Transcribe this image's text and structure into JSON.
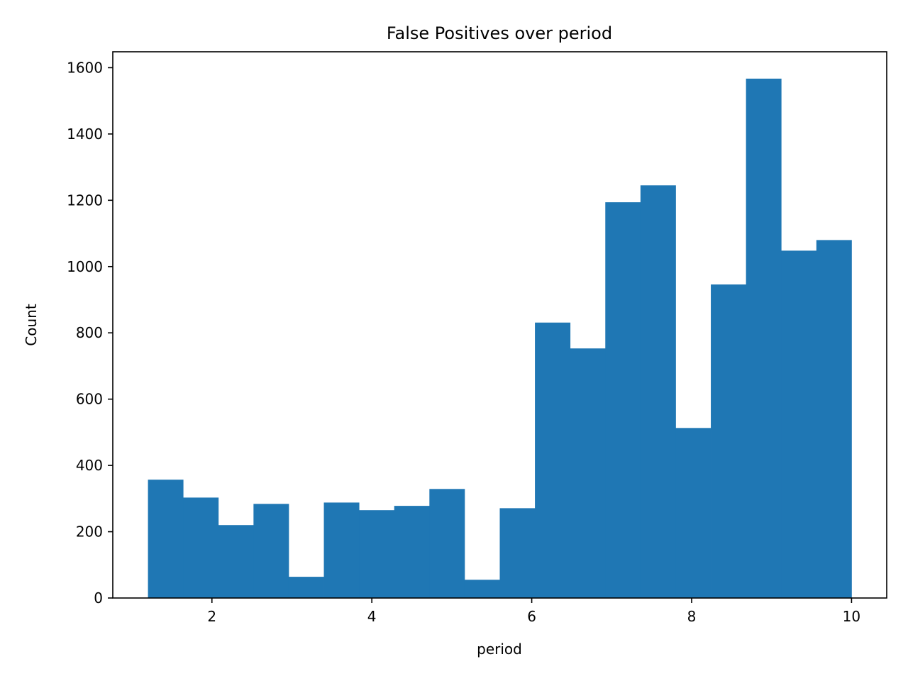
{
  "chart_data": {
    "type": "bar",
    "subtype": "histogram",
    "title": "False Positives over period",
    "xlabel": "period",
    "ylabel": "Count",
    "xlim": [
      0.76,
      10.44
    ],
    "ylim": [
      0,
      1648
    ],
    "xticks": [
      2,
      4,
      6,
      8,
      10
    ],
    "yticks": [
      0,
      200,
      400,
      600,
      800,
      1000,
      1200,
      1400,
      1600
    ],
    "grid": false,
    "color": "#1f77b4",
    "bins": [
      {
        "x0": 1.2,
        "x1": 1.64,
        "value": 357
      },
      {
        "x0": 1.64,
        "x1": 2.08,
        "value": 303
      },
      {
        "x0": 2.08,
        "x1": 2.52,
        "value": 220
      },
      {
        "x0": 2.52,
        "x1": 2.96,
        "value": 284
      },
      {
        "x0": 2.96,
        "x1": 3.4,
        "value": 64
      },
      {
        "x0": 3.4,
        "x1": 3.84,
        "value": 288
      },
      {
        "x0": 3.84,
        "x1": 4.28,
        "value": 265
      },
      {
        "x0": 4.28,
        "x1": 4.72,
        "value": 278
      },
      {
        "x0": 4.72,
        "x1": 5.16,
        "value": 329
      },
      {
        "x0": 5.16,
        "x1": 5.6,
        "value": 55
      },
      {
        "x0": 5.6,
        "x1": 6.04,
        "value": 271
      },
      {
        "x0": 6.04,
        "x1": 6.48,
        "value": 831
      },
      {
        "x0": 6.48,
        "x1": 6.92,
        "value": 753
      },
      {
        "x0": 6.92,
        "x1": 7.36,
        "value": 1194
      },
      {
        "x0": 7.36,
        "x1": 7.8,
        "value": 1245
      },
      {
        "x0": 7.8,
        "x1": 8.24,
        "value": 513
      },
      {
        "x0": 8.24,
        "x1": 8.68,
        "value": 946
      },
      {
        "x0": 8.68,
        "x1": 9.12,
        "value": 1567
      },
      {
        "x0": 9.12,
        "x1": 9.56,
        "value": 1048
      },
      {
        "x0": 9.56,
        "x1": 10.0,
        "value": 1080
      }
    ]
  }
}
